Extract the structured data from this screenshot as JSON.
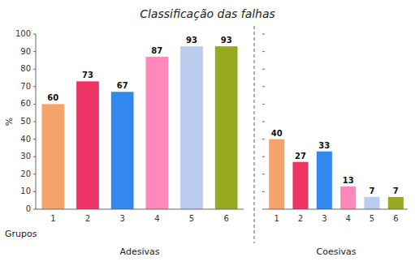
{
  "chart_data": [
    {
      "type": "bar",
      "title": "Classificação das falhas",
      "ylabel": "%",
      "xlabel": "Adesivas",
      "annotations": [
        "Grupos"
      ],
      "categories": [
        "1",
        "2",
        "3",
        "4",
        "5",
        "6"
      ],
      "values": [
        60,
        73,
        67,
        87,
        93,
        93
      ],
      "colors": [
        "#F4A46A",
        "#EE3366",
        "#3388EE",
        "#FF88BB",
        "#BBCCEE",
        "#99AA22"
      ],
      "ylim": [
        0,
        100
      ],
      "yticks": [
        0,
        10,
        20,
        30,
        40,
        50,
        60,
        70,
        80,
        90,
        100
      ],
      "data_labels": true
    },
    {
      "type": "bar",
      "xlabel": "Coesivas",
      "categories": [
        "1",
        "2",
        "3",
        "4",
        "5",
        "6"
      ],
      "values": [
        40,
        27,
        33,
        13,
        7,
        7
      ],
      "colors": [
        "#F4A46A",
        "#EE3366",
        "#3388EE",
        "#FF88BB",
        "#BBCCEE",
        "#99AA22"
      ],
      "ylim": [
        0,
        100
      ],
      "yticks": [
        0,
        10,
        20,
        30,
        40,
        50,
        60,
        70,
        80,
        90,
        100
      ],
      "data_labels": true,
      "tick_labels": "x"
    }
  ]
}
